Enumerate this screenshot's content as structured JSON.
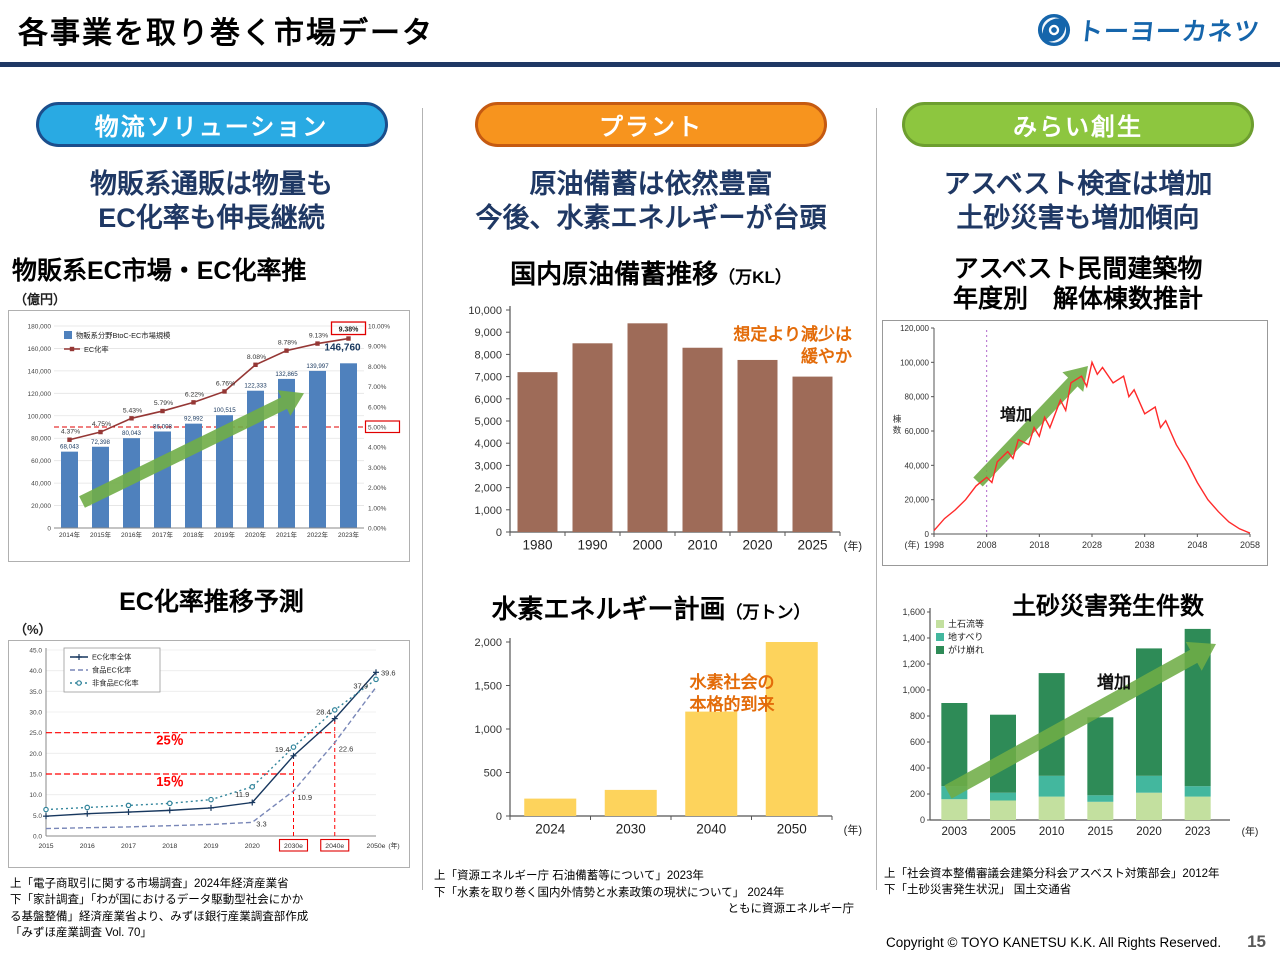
{
  "page": {
    "title": "各事業を取り巻く市場データ",
    "logo_text": "トーヨーカネツ",
    "copyright": "Copyright © TOYO KANETSU K.K. All Rights Reserved.",
    "page_number": "15"
  },
  "columns": [
    {
      "pill": "物流ソリューション",
      "pill_color": "#29aae3",
      "headline_lines": [
        "物販系通販は物量も",
        "EC化率も伸長継続"
      ],
      "source_lines": [
        "上「電子商取引に関する市場調査」2024年経済産業省",
        "下「家計調査」「わが国におけるデータ駆動型社会にかか",
        "る基盤整備」経済産業省より、みずほ銀行産業調査部作成",
        "「みずほ産業調査 Vol. 70」"
      ]
    },
    {
      "pill": "プラント",
      "pill_color": "#f7941e",
      "headline_lines": [
        "原油備蓄は依然豊富",
        "今後、水素エネルギーが台頭"
      ],
      "source_lines": [
        "上「資源エネルギー庁 石油備蓄等について」2023年",
        "下「水素を取り巻く国内外情勢と水素政策の現状について」 2024年",
        "ともに資源エネルギー庁"
      ]
    },
    {
      "pill": "みらい創生",
      "pill_color": "#8dc63f",
      "headline_lines": [
        "アスベスト検査は増加",
        "土砂災害も増加傾向"
      ],
      "source_lines": [
        "上「社会資本整備審議会建築分科会アスベスト対策部会」2012年",
        "下「土砂災害発生状況」 国土交通省"
      ]
    }
  ],
  "chart_data": [
    {
      "id": "ec-market",
      "type": "bar+line",
      "title": "物販系EC市場・EC化率推",
      "unit_left": "（億円）",
      "categories": [
        "2014年",
        "2015年",
        "2016年",
        "2017年",
        "2018年",
        "2019年",
        "2020年",
        "2021年",
        "2022年",
        "2023年"
      ],
      "bar_series": {
        "name": "物販系分野BtoC-EC市場規模",
        "color": "#4f81bd",
        "values": [
          68043,
          72398,
          80043,
          86008,
          92992,
          100515,
          122333,
          132865,
          139997,
          146760
        ]
      },
      "line_series": {
        "name": "EC化率",
        "color": "#953735",
        "values_pct": [
          4.37,
          4.75,
          5.43,
          5.79,
          6.22,
          6.76,
          8.08,
          8.78,
          9.13,
          9.38
        ]
      },
      "ylim_left": [
        0,
        180000
      ],
      "ytick_step_left": 20000,
      "ylim_right_pct": [
        0,
        10
      ],
      "ytick_step_right_pct": 1,
      "reference_line_right_pct": 5.0,
      "highlight_boxes": [
        "9.38%",
        "5.00%"
      ],
      "trend_arrow": {
        "direction": "up-right",
        "color": "#70ad47"
      }
    },
    {
      "id": "ec-rate-forecast",
      "type": "line",
      "title": "EC化率推移予測",
      "unit": "（%）",
      "categories": [
        "2015",
        "2016",
        "2017",
        "2018",
        "2019",
        "2020",
        "2030e",
        "2040e",
        "2050e"
      ],
      "x_axis_suffix": "(年)",
      "ylim": [
        0,
        45
      ],
      "ytick_step": 5,
      "series": [
        {
          "name": "EC化率全体",
          "color": "#17375e",
          "style": "solid",
          "marker": "plus",
          "values": [
            4.8,
            5.4,
            5.8,
            6.2,
            6.8,
            8.1,
            19.4,
            28.4,
            39.6
          ]
        },
        {
          "name": "食品EC化率",
          "color": "#7886b7",
          "style": "dashed",
          "marker": "none",
          "values": [
            1.8,
            2.0,
            2.2,
            2.5,
            2.8,
            3.3,
            10.9,
            22.6,
            36.0
          ]
        },
        {
          "name": "非食品EC化率",
          "color": "#31849b",
          "style": "dotted",
          "marker": "circle",
          "values": [
            6.4,
            6.9,
            7.4,
            7.9,
            8.8,
            11.9,
            21.5,
            30.5,
            37.9
          ]
        }
      ],
      "reference_lines": [
        {
          "value": 25,
          "label": "25％"
        },
        {
          "value": 15,
          "label": "15％"
        }
      ],
      "boxed_x_labels": [
        "2030e",
        "2040e"
      ],
      "point_labels": [
        {
          "series_index": 0,
          "cat_index": 6,
          "text": "19.4"
        },
        {
          "series_index": 0,
          "cat_index": 7,
          "text": "28.4"
        },
        {
          "series_index": 0,
          "cat_index": 8,
          "text": "39.6"
        },
        {
          "series_index": 1,
          "cat_index": 5,
          "text": "3.3"
        },
        {
          "series_index": 1,
          "cat_index": 6,
          "text": "10.9"
        },
        {
          "series_index": 1,
          "cat_index": 7,
          "text": "22.6"
        },
        {
          "series_index": 2,
          "cat_index": 5,
          "text": "11.9"
        },
        {
          "series_index": 2,
          "cat_index": 8,
          "text": "37.9"
        }
      ]
    },
    {
      "id": "oil-reserve",
      "type": "bar",
      "title": "国内原油備蓄推移",
      "unit": "（万KL）",
      "categories": [
        "1980",
        "1990",
        "2000",
        "2010",
        "2020",
        "2025"
      ],
      "values": [
        7200,
        8500,
        9400,
        8300,
        7750,
        7000
      ],
      "bar_color": "#9e6b58",
      "ylim": [
        0,
        10000
      ],
      "ytick_step": 1000,
      "x_axis_suffix": "(年)",
      "annotation": {
        "text_lines": [
          "想定より減少は",
          "緩やか"
        ],
        "color": "#e36c0a"
      }
    },
    {
      "id": "hydrogen-plan",
      "type": "bar",
      "title": "水素エネルギー計画",
      "unit": "（万トン）",
      "categories": [
        "2024",
        "2030",
        "2040",
        "2050"
      ],
      "values": [
        200,
        300,
        1200,
        2000
      ],
      "bar_color": "#fdd35c",
      "ylim": [
        0,
        2000
      ],
      "ytick_step": 500,
      "x_axis_suffix": "(年)",
      "annotation": {
        "text_lines": [
          "水素社会の",
          "本格的到来"
        ],
        "color": "#e36c0a"
      }
    },
    {
      "id": "asbestos-demolition",
      "type": "line",
      "title_lines": [
        "アスベスト民間建築物",
        "年度別　解体棟数推計"
      ],
      "ylabel": "棟数",
      "x_axis_prefix": "(年)",
      "x_ticks": [
        1998,
        2008,
        2018,
        2028,
        2038,
        2048,
        2058
      ],
      "ylim": [
        0,
        120000
      ],
      "ytick_step": 20000,
      "series": [
        {
          "name": "解体棟数推計",
          "color": "#ff2a2a",
          "x": [
            1998,
            2000,
            2002,
            2004,
            2006,
            2008,
            2009,
            2010,
            2012,
            2013,
            2014,
            2016,
            2017,
            2018,
            2019,
            2020,
            2022,
            2023,
            2024,
            2026,
            2027,
            2028,
            2029,
            2030,
            2032,
            2034,
            2035,
            2036,
            2038,
            2040,
            2041,
            2042,
            2044,
            2046,
            2048,
            2050,
            2052,
            2054,
            2056,
            2058
          ],
          "values": [
            2000,
            9000,
            14000,
            20000,
            28000,
            33000,
            30000,
            42000,
            48000,
            44000,
            55000,
            52000,
            62000,
            57000,
            68000,
            62000,
            78000,
            72000,
            88000,
            92000,
            86000,
            100000,
            93000,
            97000,
            88000,
            92000,
            80000,
            84000,
            70000,
            74000,
            62000,
            66000,
            52000,
            42000,
            30000,
            20000,
            13000,
            7000,
            3000,
            500
          ]
        }
      ],
      "vline_year": 2008,
      "annotation": {
        "text": "増加",
        "arrow_color": "#70ad47"
      }
    },
    {
      "id": "landslide-count",
      "type": "stacked_bar",
      "title": "土砂災害発生件数",
      "categories": [
        "2003",
        "2005",
        "2010",
        "2015",
        "2020",
        "2023"
      ],
      "series": [
        {
          "name": "土石流等",
          "color": "#c3e09f",
          "values": [
            160,
            150,
            180,
            140,
            210,
            180
          ]
        },
        {
          "name": "地すべり",
          "color": "#43b79e",
          "values": [
            100,
            60,
            160,
            50,
            130,
            80
          ]
        },
        {
          "name": "がけ崩れ",
          "color": "#2e8b57",
          "values": [
            640,
            600,
            790,
            600,
            980,
            1210
          ]
        }
      ],
      "ylim": [
        0,
        1600
      ],
      "ytick_step": 200,
      "x_axis_suffix": "(年)",
      "annotation": {
        "text": "増加",
        "arrow_color": "#70ad47"
      }
    }
  ]
}
